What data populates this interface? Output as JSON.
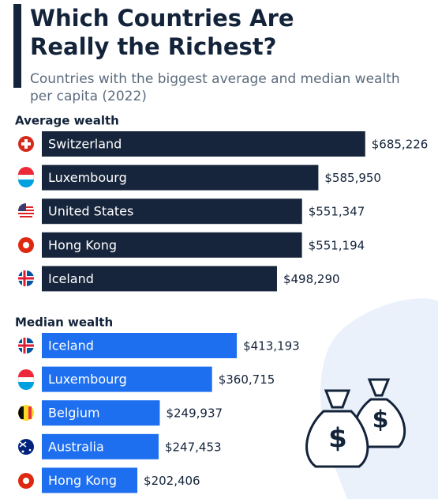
{
  "header": {
    "title_lines": [
      "Which Countries Are",
      "Really the Richest?"
    ],
    "subtitle_lines": [
      "Countries with the biggest average and median wealth",
      "per capita (2022)"
    ]
  },
  "chart_data": [
    {
      "type": "bar",
      "title": "Average wealth",
      "color": "#16253b",
      "categories": [
        "Switzerland",
        "Luxembourg",
        "United States",
        "Hong Kong",
        "Iceland"
      ],
      "values": [
        685226,
        585950,
        551347,
        551194,
        498290
      ],
      "value_labels": [
        "$685,226",
        "$585,950",
        "$551,347",
        "$551,194",
        "$498,290"
      ]
    },
    {
      "type": "bar",
      "title": "Median wealth",
      "color": "#1e6ff0",
      "categories": [
        "Iceland",
        "Luxembourg",
        "Belgium",
        "Australia",
        "Hong Kong"
      ],
      "values": [
        413193,
        360715,
        249937,
        247453,
        202406
      ],
      "value_labels": [
        "$413,193",
        "$360,715",
        "$249,937",
        "$247,453",
        "$202,406"
      ]
    }
  ]
}
